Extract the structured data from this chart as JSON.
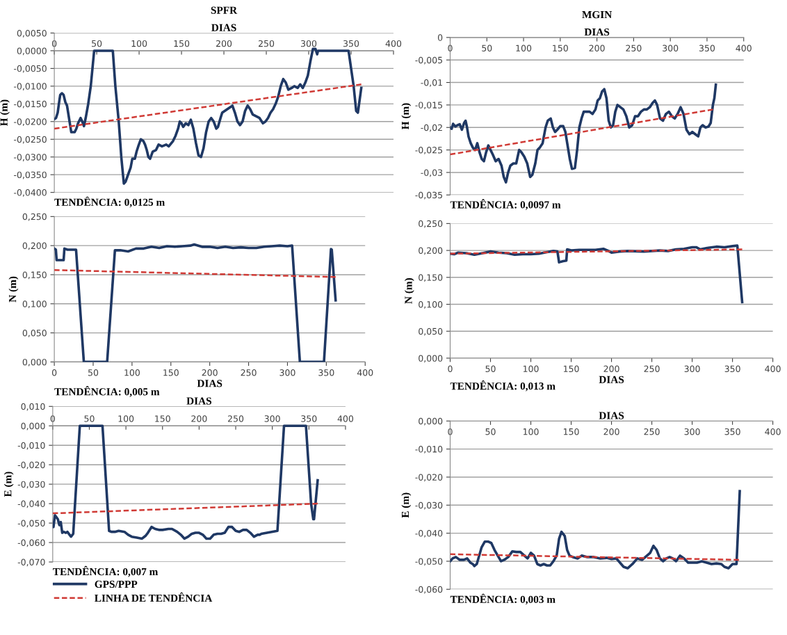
{
  "chart_data": [
    {
      "type": "line",
      "title": "SPFR",
      "xlabel": "DIAS",
      "ylabel": "H (m)",
      "xlim": [
        0,
        400
      ],
      "xticks": [
        0,
        50,
        100,
        150,
        200,
        250,
        300,
        350,
        400
      ],
      "ylim": [
        -0.04,
        0.005
      ],
      "yticks": [
        {
          "value": 0.005,
          "label": "0,0050"
        },
        {
          "value": 0,
          "label": "0,0000"
        },
        {
          "value": -0.005,
          "label": "-0,0050"
        },
        {
          "value": -0.01,
          "label": "-0,0100"
        },
        {
          "value": -0.015,
          "label": "-0,0150"
        },
        {
          "value": -0.02,
          "label": "-0,0200"
        },
        {
          "value": -0.025,
          "label": "-0,0250"
        },
        {
          "value": -0.03,
          "label": "-0,0300"
        },
        {
          "value": -0.035,
          "label": "-0,0350"
        },
        {
          "value": -0.04,
          "label": "-0,0400"
        }
      ],
      "grid": "y",
      "annotations": [
        "TENDÊNCIA: 0,0125 m"
      ],
      "series": [
        {
          "color": "#1f3864",
          "x": [
            0,
            2,
            4,
            6,
            7,
            9,
            11,
            13,
            15,
            17,
            19,
            20,
            24,
            26,
            28,
            31,
            33,
            35,
            37,
            40,
            43,
            45,
            47,
            69,
            72,
            76,
            79,
            82,
            84,
            87,
            90,
            92,
            95,
            97,
            99,
            102,
            105,
            107,
            109,
            111,
            113,
            116,
            120,
            123,
            127,
            132,
            135,
            140,
            143,
            146,
            148,
            150,
            152,
            155,
            158,
            161,
            164,
            167,
            170,
            173,
            176,
            179,
            182,
            185,
            188,
            191,
            193,
            196,
            198,
            201,
            204,
            207,
            210,
            213,
            216,
            219,
            222,
            225,
            228,
            231,
            234,
            238,
            242,
            246,
            249,
            252,
            255,
            258,
            261,
            264,
            267,
            270,
            273,
            276,
            280,
            283,
            287,
            290,
            293,
            296,
            299,
            302,
            305,
            308,
            310,
            311,
            347,
            350,
            353,
            356,
            358,
            360,
            362
          ],
          "values": [
            -0.0193,
            -0.019,
            -0.0175,
            -0.014,
            -0.0125,
            -0.012,
            -0.0125,
            -0.0145,
            -0.0155,
            -0.0185,
            -0.0215,
            -0.023,
            -0.023,
            -0.022,
            -0.0205,
            -0.019,
            -0.02,
            -0.0213,
            -0.019,
            -0.015,
            -0.01,
            -0.005,
            0.0,
            0.0,
            -0.01,
            -0.02,
            -0.03,
            -0.0375,
            -0.037,
            -0.035,
            -0.033,
            -0.0305,
            -0.0305,
            -0.0285,
            -0.027,
            -0.025,
            -0.0255,
            -0.0265,
            -0.028,
            -0.03,
            -0.0305,
            -0.0285,
            -0.028,
            -0.0265,
            -0.027,
            -0.0265,
            -0.027,
            -0.0255,
            -0.024,
            -0.022,
            -0.02,
            -0.0205,
            -0.0215,
            -0.0205,
            -0.021,
            -0.0195,
            -0.022,
            -0.026,
            -0.0295,
            -0.03,
            -0.0275,
            -0.023,
            -0.02,
            -0.019,
            -0.02,
            -0.022,
            -0.0215,
            -0.019,
            -0.0175,
            -0.017,
            -0.0165,
            -0.016,
            -0.0155,
            -0.0175,
            -0.02,
            -0.021,
            -0.02,
            -0.017,
            -0.0155,
            -0.0165,
            -0.018,
            -0.0185,
            -0.019,
            -0.0205,
            -0.02,
            -0.019,
            -0.0175,
            -0.0165,
            -0.015,
            -0.013,
            -0.01,
            -0.008,
            -0.009,
            -0.011,
            -0.0105,
            -0.01,
            -0.0105,
            -0.0095,
            -0.0105,
            -0.009,
            -0.007,
            -0.003,
            0.0005,
            0.0005,
            -0.001,
            0.0,
            0.0,
            -0.005,
            -0.01,
            -0.017,
            -0.0175,
            -0.014,
            -0.0105
          ]
        },
        {
          "color": "#d03a35",
          "line_style": "dashed",
          "x": [
            0,
            362
          ],
          "values": [
            -0.022,
            -0.0095
          ]
        }
      ]
    },
    {
      "type": "line",
      "title": "MGIN",
      "xlabel": "DIAS",
      "ylabel": "H (m)",
      "xlim": [
        0,
        400
      ],
      "xticks": [
        0,
        50,
        100,
        150,
        200,
        250,
        300,
        350,
        400
      ],
      "ylim": [
        -0.035,
        0
      ],
      "yticks": [
        0,
        {
          "value": -0.005,
          "label": "-0,005"
        },
        {
          "value": -0.01,
          "label": "-0,01"
        },
        {
          "value": -0.015,
          "label": "-0,015"
        },
        {
          "value": -0.02,
          "label": "-0,02"
        },
        {
          "value": -0.025,
          "label": "-0,025"
        },
        {
          "value": -0.03,
          "label": "-0,03"
        },
        {
          "value": -0.035,
          "label": "-0,035"
        }
      ],
      "grid": "y",
      "annotations": [
        "TENDÊNCIA: 0,0097 m"
      ],
      "series": [
        {
          "color": "#1f3864",
          "x": [
            0,
            2,
            4,
            7,
            10,
            13,
            16,
            19,
            21,
            23,
            25,
            28,
            31,
            34,
            37,
            40,
            43,
            46,
            49,
            52,
            55,
            58,
            62,
            66,
            70,
            73,
            76,
            79,
            82,
            86,
            90,
            94,
            97,
            101,
            105,
            109,
            112,
            116,
            119,
            122,
            126,
            130,
            133,
            137,
            140,
            143,
            146,
            150,
            154,
            157,
            160,
            163,
            166,
            170,
            173,
            176,
            179,
            182,
            186,
            190,
            194,
            198,
            201,
            204,
            207,
            210,
            213,
            216,
            219,
            222,
            225,
            228,
            232,
            236,
            240,
            244,
            248,
            252,
            256,
            260,
            264,
            268,
            272,
            276,
            279,
            282,
            286,
            290,
            294,
            298,
            302,
            306,
            310,
            314,
            318,
            322,
            326,
            330,
            334,
            338,
            341,
            344,
            348,
            352,
            355,
            358,
            360,
            362
          ],
          "values": [
            -0.02,
            -0.0203,
            -0.0192,
            -0.0198,
            -0.0195,
            -0.0193,
            -0.0205,
            -0.019,
            -0.0185,
            -0.02,
            -0.022,
            -0.0235,
            -0.0245,
            -0.025,
            -0.0235,
            -0.0255,
            -0.027,
            -0.0275,
            -0.0255,
            -0.024,
            -0.025,
            -0.026,
            -0.0275,
            -0.027,
            -0.0285,
            -0.031,
            -0.0322,
            -0.03,
            -0.0285,
            -0.028,
            -0.028,
            -0.025,
            -0.0255,
            -0.0265,
            -0.028,
            -0.031,
            -0.0305,
            -0.028,
            -0.025,
            -0.0245,
            -0.0235,
            -0.02,
            -0.0185,
            -0.018,
            -0.02,
            -0.021,
            -0.0205,
            -0.0197,
            -0.0197,
            -0.021,
            -0.024,
            -0.027,
            -0.0292,
            -0.029,
            -0.025,
            -0.02,
            -0.018,
            -0.0165,
            -0.0165,
            -0.0165,
            -0.017,
            -0.016,
            -0.014,
            -0.0135,
            -0.012,
            -0.0115,
            -0.0135,
            -0.0185,
            -0.02,
            -0.0195,
            -0.0165,
            -0.015,
            -0.0155,
            -0.016,
            -0.0175,
            -0.02,
            -0.0195,
            -0.0175,
            -0.0175,
            -0.0165,
            -0.016,
            -0.016,
            -0.0155,
            -0.0145,
            -0.014,
            -0.015,
            -0.018,
            -0.0185,
            -0.017,
            -0.0165,
            -0.0175,
            -0.018,
            -0.017,
            -0.0155,
            -0.017,
            -0.0205,
            -0.0215,
            -0.021,
            -0.0215,
            -0.022,
            -0.02,
            -0.0195,
            -0.02,
            -0.0198,
            -0.019,
            -0.015,
            -0.0135,
            -0.0105
          ]
        },
        {
          "color": "#d03a35",
          "line_style": "dashed",
          "x": [
            0,
            358
          ],
          "values": [
            -0.026,
            -0.016
          ]
        }
      ]
    },
    {
      "type": "line",
      "xlabel": "DIAS",
      "ylabel": "N (m)",
      "xlim": [
        0,
        400
      ],
      "xticks": [
        0,
        50,
        100,
        150,
        200,
        250,
        300,
        350,
        400
      ],
      "ylim": [
        0,
        0.25
      ],
      "yticks": [
        {
          "value": 0,
          "label": "0,000"
        },
        {
          "value": 0.05,
          "label": "0,050"
        },
        {
          "value": 0.1,
          "label": "0,100"
        },
        {
          "value": 0.15,
          "label": "0,150"
        },
        {
          "value": 0.2,
          "label": "0,200"
        },
        {
          "value": 0.25,
          "label": "0,250"
        }
      ],
      "grid": "y",
      "annotations": [
        "TENDÊNCIA: 0,005 m"
      ],
      "series": [
        {
          "color": "#1f3864",
          "x": [
            0,
            2,
            3,
            6,
            12,
            13,
            17,
            22,
            28,
            38,
            68,
            78,
            85,
            95,
            105,
            115,
            125,
            135,
            145,
            155,
            165,
            175,
            180,
            190,
            200,
            210,
            220,
            230,
            240,
            250,
            260,
            270,
            280,
            290,
            300,
            306,
            316,
            347,
            356,
            357,
            362
          ],
          "values": [
            0.195,
            0.193,
            0.175,
            0.175,
            0.175,
            0.195,
            0.193,
            0.193,
            0.193,
            0.0,
            0.0,
            0.192,
            0.192,
            0.19,
            0.195,
            0.195,
            0.198,
            0.196,
            0.199,
            0.198,
            0.199,
            0.2,
            0.202,
            0.198,
            0.198,
            0.196,
            0.198,
            0.196,
            0.197,
            0.196,
            0.196,
            0.198,
            0.199,
            0.2,
            0.199,
            0.2,
            0.0,
            0.0,
            0.194,
            0.193,
            0.106
          ]
        },
        {
          "color": "#d03a35",
          "line_style": "dashed",
          "x": [
            0,
            362
          ],
          "values": [
            0.158,
            0.146
          ]
        }
      ]
    },
    {
      "type": "line",
      "xlabel": "DIAS",
      "ylabel": "N (m)",
      "xlim": [
        0,
        400
      ],
      "xticks": [
        0,
        50,
        100,
        150,
        200,
        250,
        300,
        350,
        400
      ],
      "ylim": [
        0,
        0.25
      ],
      "yticks": [
        {
          "value": 0,
          "label": "0,000"
        },
        {
          "value": 0.05,
          "label": "0,050"
        },
        {
          "value": 0.1,
          "label": "0,100"
        },
        {
          "value": 0.15,
          "label": "0,150"
        },
        {
          "value": 0.2,
          "label": "0,200"
        },
        {
          "value": 0.25,
          "label": "0,250"
        }
      ],
      "grid": "y",
      "annotations": [
        "TENDÊNCIA: 0,013 m"
      ],
      "series": [
        {
          "color": "#1f3864",
          "x": [
            0,
            5,
            10,
            20,
            30,
            40,
            50,
            60,
            70,
            80,
            90,
            100,
            110,
            120,
            128,
            133,
            135,
            140,
            144,
            145,
            150,
            160,
            170,
            180,
            190,
            195,
            200,
            210,
            220,
            240,
            260,
            270,
            280,
            290,
            300,
            305,
            310,
            320,
            330,
            340,
            350,
            356,
            362
          ],
          "values": [
            0.194,
            0.193,
            0.196,
            0.195,
            0.192,
            0.195,
            0.198,
            0.196,
            0.195,
            0.192,
            0.193,
            0.193,
            0.194,
            0.197,
            0.199,
            0.198,
            0.178,
            0.18,
            0.181,
            0.202,
            0.2,
            0.201,
            0.201,
            0.201,
            0.203,
            0.2,
            0.196,
            0.198,
            0.199,
            0.198,
            0.2,
            0.199,
            0.202,
            0.203,
            0.206,
            0.206,
            0.202,
            0.205,
            0.207,
            0.206,
            0.208,
            0.209,
            0.104
          ]
        },
        {
          "color": "#d03a35",
          "line_style": "dashed",
          "x": [
            0,
            362
          ],
          "values": [
            0.194,
            0.202
          ]
        }
      ]
    },
    {
      "type": "line",
      "xlabel": "DIAS",
      "ylabel": "E (m)",
      "xlim": [
        0,
        400
      ],
      "xticks": [
        0,
        50,
        100,
        150,
        200,
        250,
        300,
        350,
        400
      ],
      "ylim": [
        -0.07,
        0.01
      ],
      "yticks": [
        {
          "value": 0.01,
          "label": "0,010"
        },
        {
          "value": 0,
          "label": "0,000"
        },
        {
          "value": -0.01,
          "label": "-0,010"
        },
        {
          "value": -0.02,
          "label": "-0,020"
        },
        {
          "value": -0.03,
          "label": "-0,030"
        },
        {
          "value": -0.04,
          "label": "-0,040"
        },
        {
          "value": -0.05,
          "label": "-0,050"
        },
        {
          "value": -0.06,
          "label": "-0,060"
        },
        {
          "value": -0.07,
          "label": "-0,070"
        }
      ],
      "grid": "y",
      "legend": "bottom left",
      "annotations": [
        "TENDÊNCIA: 0,007 m"
      ],
      "series": [
        {
          "name": "GPS/PPP",
          "color": "#1f3864",
          "x": [
            0,
            1,
            3,
            5,
            7,
            9,
            11,
            13,
            15,
            18,
            20,
            23,
            25,
            28,
            37,
            68,
            77,
            80,
            85,
            90,
            98,
            103,
            108,
            115,
            122,
            127,
            130,
            135,
            140,
            145,
            150,
            158,
            163,
            170,
            175,
            180,
            185,
            190,
            195,
            200,
            205,
            210,
            215,
            220,
            225,
            230,
            235,
            240,
            245,
            250,
            255,
            260,
            265,
            270,
            275,
            280,
            283,
            285,
            307,
            316,
            346,
            353,
            356,
            357,
            362
          ],
          "values": [
            -0.052,
            -0.052,
            -0.046,
            -0.047,
            -0.048,
            -0.051,
            -0.0495,
            -0.055,
            -0.0545,
            -0.055,
            -0.0545,
            -0.056,
            -0.057,
            -0.0555,
            0.0,
            0.0,
            -0.054,
            -0.0545,
            -0.0545,
            -0.054,
            -0.0545,
            -0.056,
            -0.057,
            -0.0575,
            -0.058,
            -0.0565,
            -0.055,
            -0.052,
            -0.053,
            -0.0535,
            -0.0535,
            -0.053,
            -0.053,
            -0.0545,
            -0.056,
            -0.058,
            -0.057,
            -0.0555,
            -0.055,
            -0.055,
            -0.056,
            -0.058,
            -0.058,
            -0.056,
            -0.0555,
            -0.0555,
            -0.055,
            -0.052,
            -0.052,
            -0.054,
            -0.0545,
            -0.0535,
            -0.0535,
            -0.055,
            -0.057,
            -0.056,
            -0.056,
            -0.0555,
            -0.054,
            0.0,
            0.0,
            -0.04,
            -0.048,
            -0.048,
            -0.028
          ]
        },
        {
          "name": "LINHA DE TENDÊNCIA",
          "color": "#d03a35",
          "line_style": "dashed",
          "x": [
            0,
            362
          ],
          "values": [
            -0.045,
            -0.04
          ]
        }
      ]
    },
    {
      "type": "line",
      "xlabel": "DIAS",
      "ylabel": "E (m)",
      "xlim": [
        0,
        400
      ],
      "xticks": [
        0,
        50,
        100,
        150,
        200,
        250,
        300,
        350,
        400
      ],
      "ylim": [
        -0.06,
        0
      ],
      "yticks": [
        {
          "value": 0,
          "label": "0,000"
        },
        {
          "value": -0.01,
          "label": "-0,010"
        },
        {
          "value": -0.02,
          "label": "-0,020"
        },
        {
          "value": -0.03,
          "label": "-0,030"
        },
        {
          "value": -0.04,
          "label": "-0,040"
        },
        {
          "value": -0.05,
          "label": "-0,050"
        },
        {
          "value": -0.06,
          "label": "-0,060"
        }
      ],
      "grid": "y",
      "annotations": [
        "TENDÊNCIA: 0,003 m"
      ],
      "series": [
        {
          "color": "#1f3864",
          "x": [
            0,
            3,
            7,
            12,
            17,
            21,
            25,
            28,
            30,
            33,
            36,
            39,
            43,
            47,
            51,
            55,
            59,
            63,
            67,
            72,
            77,
            82,
            87,
            92,
            96,
            100,
            104,
            108,
            112,
            116,
            120,
            124,
            128,
            132,
            135,
            138,
            142,
            145,
            148,
            152,
            158,
            163,
            170,
            178,
            186,
            194,
            200,
            206,
            212,
            215,
            220,
            226,
            232,
            238,
            244,
            248,
            252,
            256,
            260,
            264,
            268,
            272,
            276,
            280,
            285,
            290,
            295,
            300,
            306,
            312,
            318,
            324,
            330,
            336,
            340,
            345,
            350,
            355,
            359
          ],
          "values": [
            -0.05,
            -0.049,
            -0.0485,
            -0.0495,
            -0.0495,
            -0.049,
            -0.0505,
            -0.051,
            -0.0517,
            -0.051,
            -0.048,
            -0.045,
            -0.043,
            -0.043,
            -0.0435,
            -0.046,
            -0.048,
            -0.05,
            -0.0495,
            -0.0485,
            -0.0465,
            -0.0467,
            -0.0467,
            -0.048,
            -0.049,
            -0.047,
            -0.048,
            -0.051,
            -0.0515,
            -0.051,
            -0.0515,
            -0.0515,
            -0.05,
            -0.048,
            -0.042,
            -0.0395,
            -0.041,
            -0.046,
            -0.048,
            -0.0485,
            -0.049,
            -0.048,
            -0.0485,
            -0.0485,
            -0.049,
            -0.0488,
            -0.0492,
            -0.049,
            -0.051,
            -0.052,
            -0.0525,
            -0.051,
            -0.049,
            -0.0495,
            -0.048,
            -0.047,
            -0.0445,
            -0.046,
            -0.049,
            -0.05,
            -0.049,
            -0.0485,
            -0.049,
            -0.05,
            -0.048,
            -0.049,
            -0.0505,
            -0.0505,
            -0.0505,
            -0.05,
            -0.0505,
            -0.051,
            -0.0508,
            -0.051,
            -0.052,
            -0.0525,
            -0.051,
            -0.051,
            -0.025
          ]
        },
        {
          "color": "#d03a35",
          "line_style": "dashed",
          "x": [
            0,
            358
          ],
          "values": [
            -0.0475,
            -0.0495
          ]
        }
      ]
    }
  ]
}
